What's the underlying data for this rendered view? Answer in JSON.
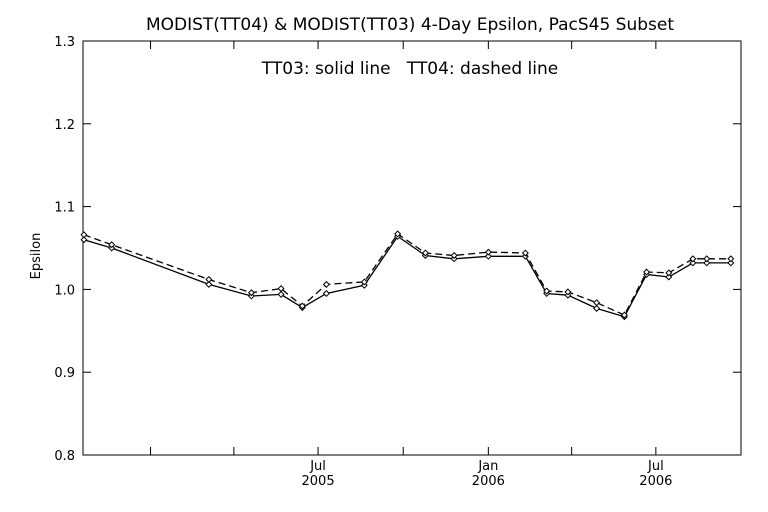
{
  "chart_data": {
    "type": "line",
    "title": "MODIST(TT04) & MODIST(TT03) 4-Day Epsilon, PacS45 Subset",
    "annotation": "TT03: solid line   TT04: dashed line",
    "xlabel": "",
    "ylabel": "Epsilon",
    "xlim": [
      "2004-10-20",
      "2006-10-01"
    ],
    "ylim": [
      0.8,
      1.3
    ],
    "y_ticks": [
      0.8,
      0.9,
      1.0,
      1.1,
      1.2,
      1.3
    ],
    "y_tick_labels": [
      "0.8",
      "0.9",
      "1.0",
      "1.1",
      "1.2",
      "1.3"
    ],
    "x_ticks": [
      {
        "date": "2005-01-01",
        "label": "",
        "label2": ""
      },
      {
        "date": "2005-04-01",
        "label": "",
        "label2": ""
      },
      {
        "date": "2005-07-01",
        "label": "Jul",
        "label2": "2005"
      },
      {
        "date": "2005-10-01",
        "label": "",
        "label2": ""
      },
      {
        "date": "2006-01-01",
        "label": "Jan",
        "label2": "2006"
      },
      {
        "date": "2006-04-01",
        "label": "",
        "label2": ""
      },
      {
        "date": "2006-07-01",
        "label": "Jul",
        "label2": "2006"
      }
    ],
    "grid": false,
    "marker": "diamond",
    "series": [
      {
        "name": "TT03",
        "style": "solid",
        "x": [
          "2004-10-21",
          "2004-11-20",
          "2005-03-05",
          "2005-04-20",
          "2005-05-22",
          "2005-06-14",
          "2005-07-10",
          "2005-08-20",
          "2005-09-25",
          "2005-10-25",
          "2005-11-25",
          "2006-01-01",
          "2006-02-10",
          "2006-03-05",
          "2006-03-28",
          "2006-04-28",
          "2006-05-28",
          "2006-06-21",
          "2006-07-15",
          "2006-08-10",
          "2006-08-25",
          "2006-09-20"
        ],
        "y": [
          1.06,
          1.05,
          1.006,
          0.992,
          0.994,
          0.978,
          0.995,
          1.005,
          1.064,
          1.041,
          1.037,
          1.04,
          1.04,
          0.995,
          0.993,
          0.977,
          0.967,
          1.018,
          1.015,
          1.032,
          1.032,
          1.032
        ]
      },
      {
        "name": "TT04",
        "style": "dashed",
        "x": [
          "2004-10-21",
          "2004-11-20",
          "2005-03-05",
          "2005-04-20",
          "2005-05-22",
          "2005-06-14",
          "2005-07-10",
          "2005-08-20",
          "2005-09-25",
          "2005-10-25",
          "2005-11-25",
          "2006-01-01",
          "2006-02-10",
          "2006-03-05",
          "2006-03-28",
          "2006-04-28",
          "2006-05-28",
          "2006-06-21",
          "2006-07-15",
          "2006-08-10",
          "2006-08-25",
          "2006-09-20"
        ],
        "y": [
          1.066,
          1.054,
          1.012,
          0.996,
          1.001,
          0.98,
          1.006,
          1.009,
          1.067,
          1.044,
          1.041,
          1.045,
          1.044,
          0.998,
          0.997,
          0.984,
          0.969,
          1.021,
          1.02,
          1.037,
          1.037,
          1.037
        ]
      }
    ]
  },
  "colors": {
    "background": "#ffffff",
    "ink": "#000000"
  }
}
